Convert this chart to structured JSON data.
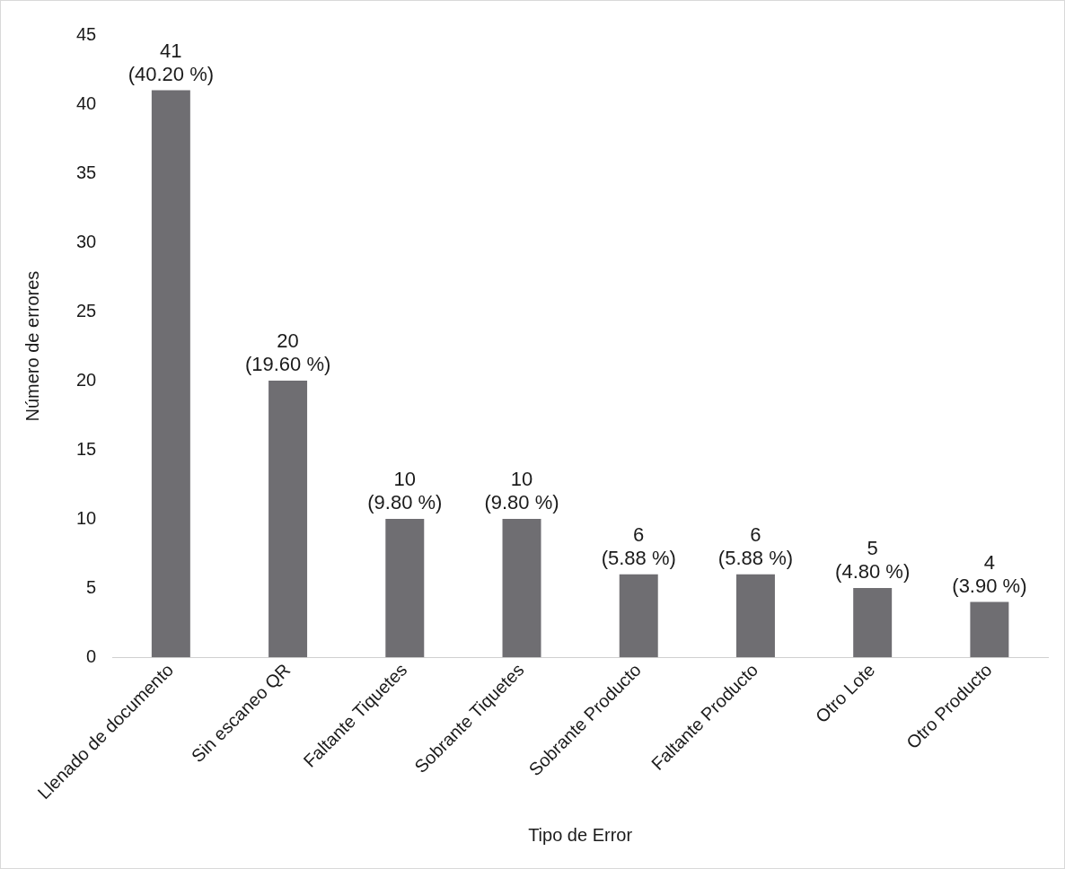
{
  "chart_data": {
    "type": "bar",
    "xlabel": "Tipo de Error",
    "ylabel": "Número de errores",
    "categories": [
      "Llenado de documento",
      "Sin escaneo QR",
      "Faltante Tiquetes",
      "Sobrante Tiquetes",
      "Sobrante Producto",
      "Faltante Producto",
      "Otro Lote",
      "Otro Producto"
    ],
    "values": [
      41,
      20,
      10,
      10,
      6,
      6,
      5,
      4
    ],
    "value_labels": [
      "41\n(40.20 %)",
      "20\n(19.60 %)",
      "10\n(9.80 %)",
      "10\n(9.80 %)",
      "6\n(5.88 %)",
      "6\n(5.88 %)",
      "5\n(4.80 %)",
      "4\n(3.90 %)"
    ],
    "color": "#6f6e72",
    "ylim": [
      0,
      45
    ],
    "yticks": [
      0,
      5,
      10,
      15,
      20,
      25,
      30,
      35,
      40,
      45
    ],
    "grid": false,
    "legend": false
  }
}
